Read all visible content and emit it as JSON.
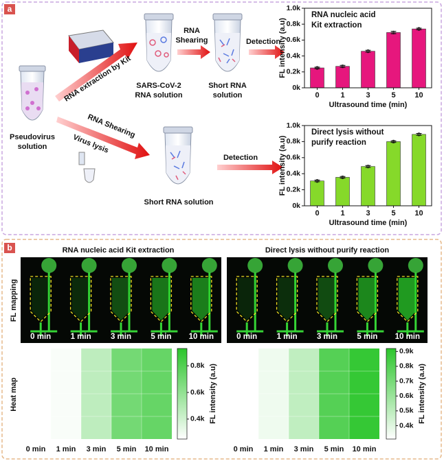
{
  "panel_labels": [
    "a",
    "b"
  ],
  "diagram": {
    "kit_arrow": "RNA extraction by Kit",
    "tube1": [
      "SARS-CoV-2",
      "RNA solution"
    ],
    "shearing1": [
      "RNA",
      "Shearing"
    ],
    "tube2": [
      "Short RNA",
      "solution"
    ],
    "detection1": "Detection",
    "source": [
      "Pseudovirus",
      "solution"
    ],
    "shearing2": "RNA Shearing",
    "lysis": "Virus lysis",
    "detection2": "Detection",
    "tube3": "Short RNA solution"
  },
  "panel_b": {
    "titles": [
      "RNA nucleic acid Kit extraction",
      "Direct lysis without purify reaction"
    ],
    "row_labels": [
      "FL mapping",
      "Heat map"
    ]
  },
  "chart_data": [
    {
      "type": "bar",
      "title_lines": [
        "RNA nucleic acid",
        "Kit extraction"
      ],
      "categories": [
        "0",
        "1",
        "3",
        "5",
        "10"
      ],
      "values": [
        250,
        270,
        460,
        695,
        740
      ],
      "errors": [
        10,
        12,
        12,
        15,
        10
      ],
      "color": "#e6177d",
      "ylim": [
        0,
        1000
      ],
      "yticks": [
        {
          "value": 0,
          "label": "0k"
        },
        {
          "value": 200,
          "label": "0.2k"
        },
        {
          "value": 400,
          "label": "0.4k"
        },
        {
          "value": 600,
          "label": "0.6k"
        },
        {
          "value": 800,
          "label": "0.8k"
        },
        {
          "value": 1000,
          "label": "1.0k"
        }
      ],
      "xlabel": "Ultrasound time (min)",
      "ylabel": "FL intensity (a.u)"
    },
    {
      "type": "bar",
      "title_lines": [
        "Direct lysis without",
        "purify reaction"
      ],
      "categories": [
        "0",
        "1",
        "3",
        "5",
        "10"
      ],
      "values": [
        310,
        355,
        490,
        800,
        890
      ],
      "errors": [
        10,
        10,
        12,
        10,
        12
      ],
      "color": "#86d92a",
      "ylim": [
        0,
        1000
      ],
      "yticks": [
        {
          "value": 0,
          "label": "0k"
        },
        {
          "value": 200,
          "label": "0.2k"
        },
        {
          "value": 400,
          "label": "0.4k"
        },
        {
          "value": 600,
          "label": "0.6k"
        },
        {
          "value": 800,
          "label": "0.8k"
        },
        {
          "value": 1000,
          "label": "1.0k"
        }
      ],
      "xlabel": "Ultrasound time (min)",
      "ylabel": "FL intensity (a.u)"
    },
    {
      "type": "heatmap",
      "categories": [
        "0 min",
        "1 min",
        "3 min",
        "5 min",
        "10 min"
      ],
      "values": [
        250,
        270,
        460,
        695,
        740
      ],
      "color": "#2bc52b",
      "clim": [
        250,
        930
      ],
      "cticks": [
        {
          "value": 400,
          "label": "0.4k"
        },
        {
          "value": 600,
          "label": "0.6k"
        },
        {
          "value": 800,
          "label": "0.8k"
        }
      ],
      "clabel": "FL intensity (a.u)"
    },
    {
      "type": "heatmap",
      "categories": [
        "0 min",
        "1 min",
        "3 min",
        "5 min",
        "10 min"
      ],
      "values": [
        310,
        355,
        490,
        800,
        890
      ],
      "color": "#2bc52b",
      "clim": [
        310,
        920
      ],
      "cticks": [
        {
          "value": 400,
          "label": "0.4k"
        },
        {
          "value": 500,
          "label": "0.5k"
        },
        {
          "value": 600,
          "label": "0.6k"
        },
        {
          "value": 700,
          "label": "0.7k"
        },
        {
          "value": 800,
          "label": "0.8k"
        },
        {
          "value": 900,
          "label": "0.9k"
        }
      ],
      "clabel": "FL intensity (a.u)"
    }
  ]
}
